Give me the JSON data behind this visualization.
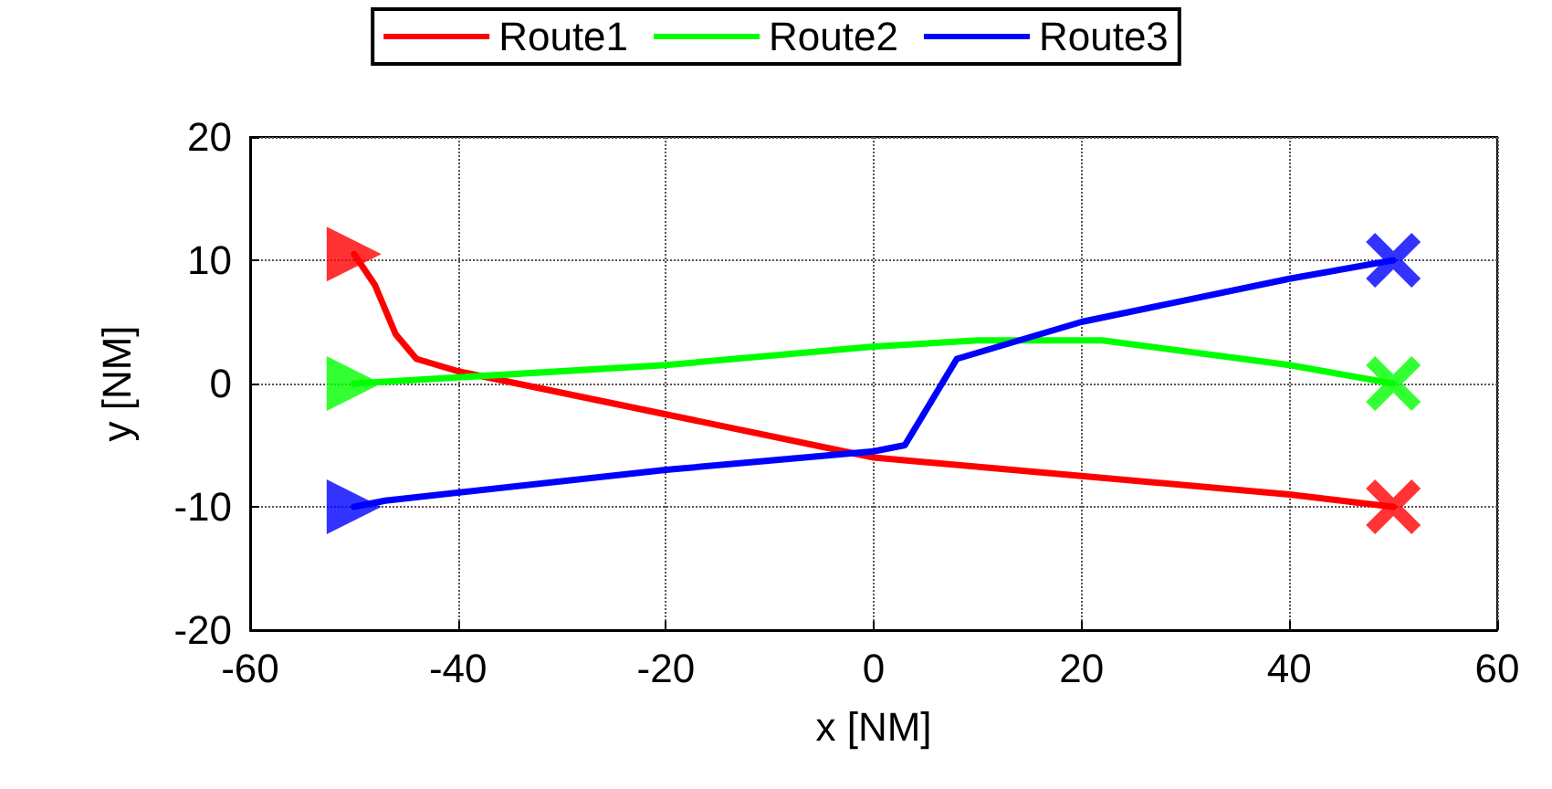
{
  "chart_data": {
    "type": "line",
    "xlabel": "x [NM]",
    "ylabel": "y [NM]",
    "xlim": [
      -60,
      60
    ],
    "xticks": [
      -60,
      -40,
      -20,
      0,
      20,
      40,
      60
    ],
    "ylim": [
      -20,
      20
    ],
    "yticks": [
      -20,
      -10,
      0,
      10,
      20
    ],
    "grid": true,
    "legend": "top",
    "line_style": "solid",
    "series": [
      {
        "name": "Route1",
        "color": "#ff0000",
        "x": [
          -50,
          -48,
          -46,
          -44,
          -40,
          -20,
          0,
          20,
          40,
          50
        ],
        "values": [
          10.5,
          8,
          4,
          2,
          1,
          -2.5,
          -6,
          -7.5,
          -9,
          -10
        ]
      },
      {
        "name": "Route2",
        "color": "#00ff00",
        "x": [
          -50,
          -40,
          -20,
          0,
          10,
          22,
          40,
          50
        ],
        "values": [
          0,
          0.5,
          1.5,
          3,
          3.5,
          3.5,
          1.5,
          0
        ]
      },
      {
        "name": "Route3",
        "color": "#0000ff",
        "x": [
          -50,
          -47,
          -20,
          0,
          3,
          8,
          20,
          40,
          50
        ],
        "values": [
          -10,
          -9.5,
          -7,
          -5.5,
          -5,
          2,
          5,
          8.5,
          10
        ]
      },
      {
        "type": "scatter",
        "marker": "triangle",
        "x": [
          -50,
          -50,
          -50
        ],
        "values": [
          10.5,
          0,
          -10
        ],
        "colors": [
          "#ff0000",
          "#00ff00",
          "#0000ff"
        ]
      },
      {
        "type": "scatter",
        "marker": "cross",
        "x": [
          50,
          50,
          50
        ],
        "values": [
          -10,
          0,
          10
        ],
        "colors": [
          "#ff0000",
          "#00ff00",
          "#0000ff"
        ]
      }
    ]
  }
}
